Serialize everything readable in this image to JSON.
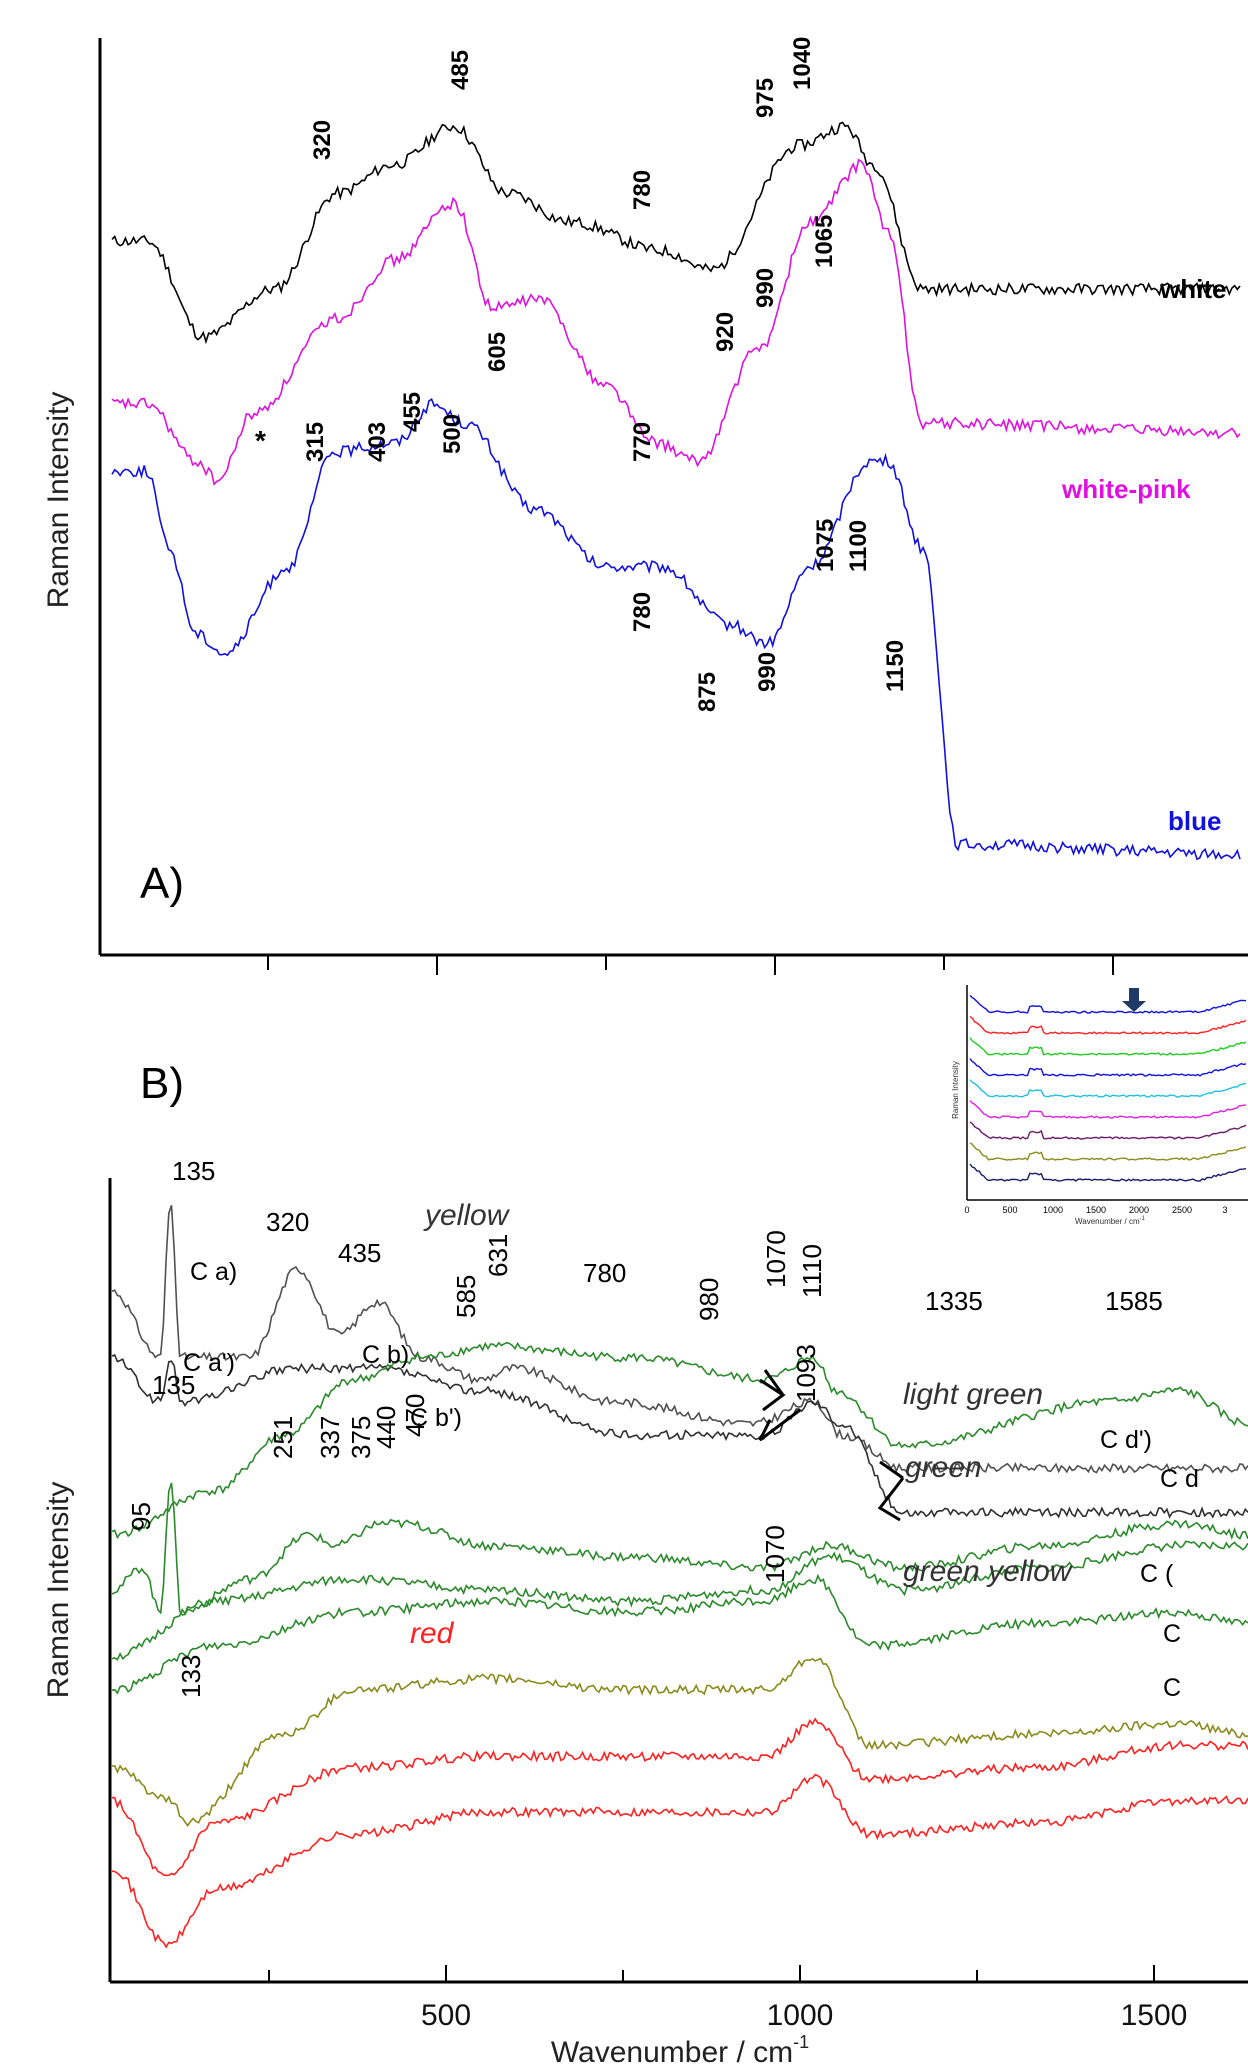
{
  "panelA": {
    "label": "A)",
    "ylabel": "Raman Intensity",
    "series": [
      {
        "name": "white",
        "color": "#000000",
        "peaks": [
          "320",
          "485",
          "780",
          "975",
          "1040"
        ]
      },
      {
        "name": "white-pink",
        "color": "#e010e0",
        "peaks": [
          "*",
          "605",
          "770",
          "920",
          "990",
          "1065"
        ]
      },
      {
        "name": "blue",
        "color": "#1010e0",
        "peaks": [
          "315",
          "403",
          "455",
          "500",
          "780",
          "875",
          "990",
          "1075",
          "1100",
          "1150"
        ]
      }
    ]
  },
  "panelB": {
    "label": "B)",
    "ylabel": "Raman Intensity",
    "xlabel": "Wavenumber  /  cm",
    "xlabel_sup": "-1",
    "xticks": [
      "500",
      "1000",
      "1500"
    ],
    "groups": [
      {
        "name": "yellow",
        "color": "#505050"
      },
      {
        "name": "light green",
        "color": "#2a8a2a"
      },
      {
        "name": "green",
        "color": "#2a8a2a"
      },
      {
        "name": "green yellow",
        "color": "#8a8a1a"
      },
      {
        "name": "red",
        "color": "#ff2020"
      }
    ],
    "curve_labels": [
      "C a)",
      "C a')",
      "C b)",
      "C b')",
      "C d')",
      "C d",
      "C (",
      "C",
      "C"
    ],
    "peaks": [
      "135",
      "320",
      "435",
      "585",
      "631",
      "780",
      "980",
      "1070",
      "1110",
      "1335",
      "1585",
      "135",
      "251",
      "337",
      "375",
      "440",
      "470",
      "1093",
      "95",
      "133",
      "1070"
    ],
    "inset": {
      "ylabel": "Raman Intensity",
      "xlabel": "Wavenumber  /  cm",
      "xlabel_sup": "-1",
      "xticks": [
        "0",
        "500",
        "1000",
        "1500",
        "2000",
        "2500",
        "3"
      ]
    }
  },
  "chart_data": [
    {
      "type": "line",
      "title": "",
      "ylabel": "Raman Intensity",
      "xlim": [
        0,
        1600
      ],
      "series": [
        {
          "name": "white",
          "x": [
            50,
            130,
            230,
            320,
            400,
            485,
            560,
            650,
            780,
            850,
            975,
            1040,
            1080,
            1150,
            1600
          ],
          "y": [
            8.4,
            7.4,
            7.9,
            8.9,
            9.2,
            9.6,
            8.9,
            8.6,
            8.3,
            8.1,
            9.4,
            9.6,
            9.2,
            7.9,
            7.9
          ]
        },
        {
          "name": "white-pink",
          "x": [
            50,
            120,
            150,
            200,
            320,
            400,
            485,
            540,
            605,
            700,
            770,
            830,
            920,
            990,
            1065,
            1100,
            1150,
            1600
          ],
          "y": [
            6.7,
            6.1,
            5.9,
            6.6,
            7.6,
            8.2,
            8.8,
            7.7,
            7.8,
            6.9,
            6.3,
            6.1,
            7.3,
            8.6,
            9.2,
            8.5,
            6.5,
            6.4
          ]
        },
        {
          "name": "blue",
          "x": [
            50,
            80,
            120,
            160,
            250,
            315,
            403,
            455,
            500,
            600,
            700,
            780,
            875,
            930,
            990,
            1075,
            1100,
            1150,
            1200,
            1600
          ],
          "y": [
            6.0,
            5.2,
            4.3,
            4.1,
            5.0,
            6.2,
            6.3,
            6.7,
            6.5,
            5.6,
            5.0,
            5.0,
            4.4,
            4.2,
            5.0,
            6.1,
            6.1,
            5.2,
            2.1,
            2.0
          ]
        }
      ]
    },
    {
      "type": "line",
      "title": "",
      "xlabel": "Wavenumber / cm-1",
      "ylabel": "Raman Intensity",
      "xlim": [
        50,
        1700
      ],
      "series": [
        {
          "name": "yellow",
          "x": [
            50,
            120,
            135,
            150,
            250,
            320,
            380,
            435,
            500,
            585,
            631,
            780,
            980,
            1070,
            1110,
            1200,
            1335,
            1585,
            1700
          ],
          "y": [
            9.2,
            8.6,
            10.0,
            8.6,
            8.6,
            9.4,
            8.8,
            9.1,
            8.6,
            8.4,
            8.5,
            8.2,
            8.0,
            8.2,
            7.9,
            7.6,
            7.6,
            7.6,
            7.6
          ]
        },
        {
          "name": "yellow",
          "x": [
            50,
            120,
            135,
            150,
            320,
            435,
            585,
            800,
            1000,
            1070,
            1110,
            1200,
            1500,
            1700
          ],
          "y": [
            8.6,
            8.2,
            8.6,
            8.2,
            8.5,
            8.5,
            8.3,
            7.9,
            7.9,
            8.2,
            8.0,
            7.2,
            7.2,
            7.2
          ]
        },
        {
          "name": "light green",
          "x": [
            50,
            200,
            300,
            400,
            500,
            600,
            800,
            1000,
            1070,
            1100,
            1200,
            1500,
            1600,
            1700
          ],
          "y": [
            7.0,
            7.4,
            7.9,
            8.4,
            8.6,
            8.7,
            8.6,
            8.4,
            8.6,
            8.3,
            7.8,
            8.2,
            8.3,
            8.0
          ]
        },
        {
          "name": "light green",
          "x": [
            50,
            95,
            120,
            135,
            150,
            251,
            337,
            375,
            440,
            470,
            600,
            800,
            1000,
            1093,
            1200,
            1400,
            1600,
            1700
          ],
          "y": [
            6.5,
            6.7,
            6.3,
            7.5,
            6.3,
            6.6,
            7.0,
            6.9,
            7.1,
            7.1,
            6.9,
            6.8,
            6.7,
            6.9,
            6.7,
            6.9,
            7.1,
            7.0
          ]
        },
        {
          "name": "green",
          "x": [
            50,
            200,
            400,
            600,
            800,
            1000,
            1093,
            1200,
            1400,
            1600,
            1700
          ],
          "y": [
            5.9,
            6.4,
            6.6,
            6.5,
            6.4,
            6.5,
            6.8,
            6.5,
            6.7,
            6.9,
            6.9
          ]
        },
        {
          "name": "green",
          "x": [
            50,
            200,
            400,
            600,
            800,
            1000,
            1070,
            1150,
            1400,
            1600,
            1700
          ],
          "y": [
            5.6,
            6.0,
            6.3,
            6.4,
            6.3,
            6.4,
            6.6,
            6.0,
            6.2,
            6.3,
            6.2
          ]
        },
        {
          "name": "green yellow",
          "x": [
            50,
            133,
            160,
            300,
            400,
            600,
            800,
            1000,
            1070,
            1150,
            1400,
            1600,
            1700
          ],
          "y": [
            4.9,
            4.6,
            4.4,
            5.2,
            5.6,
            5.7,
            5.6,
            5.6,
            5.9,
            5.1,
            5.2,
            5.3,
            5.2
          ]
        },
        {
          "name": "red",
          "x": [
            50,
            130,
            200,
            400,
            600,
            800,
            1000,
            1070,
            1150,
            1400,
            1600,
            1700
          ],
          "y": [
            4.6,
            3.9,
            4.4,
            4.9,
            5.0,
            5.0,
            5.0,
            5.3,
            4.8,
            4.9,
            5.1,
            5.1
          ]
        },
        {
          "name": "red",
          "x": [
            50,
            130,
            200,
            400,
            600,
            800,
            1000,
            1070,
            1150,
            1400,
            1600,
            1700
          ],
          "y": [
            4.0,
            3.3,
            3.8,
            4.3,
            4.5,
            4.5,
            4.5,
            4.8,
            4.3,
            4.4,
            4.6,
            4.6
          ]
        }
      ]
    }
  ]
}
